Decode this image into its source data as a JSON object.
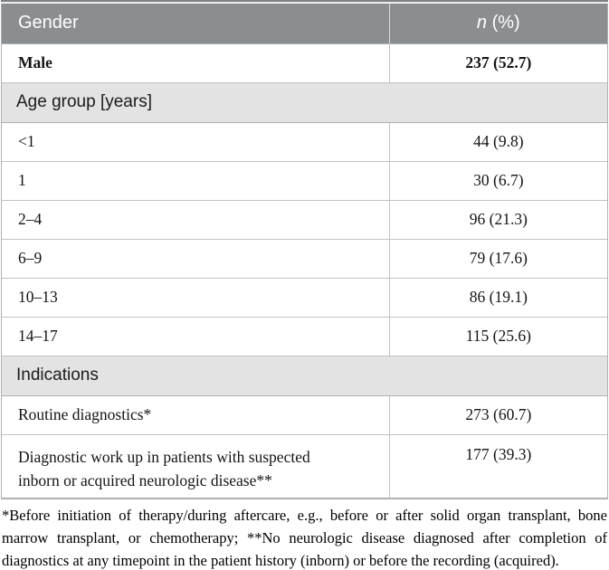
{
  "header": {
    "col1": "Gender",
    "col2_symbol": "n",
    "col2_suffix": " (%)"
  },
  "gender_rows": [
    {
      "label": "Male",
      "value": "237 (52.7)",
      "bold": true
    }
  ],
  "sections": [
    {
      "title": "Age group [years]",
      "rows": [
        {
          "label": "<1",
          "value": "44 (9.8)"
        },
        {
          "label": "1",
          "value": "30 (6.7)"
        },
        {
          "label": "2–4",
          "value": "96 (21.3)"
        },
        {
          "label": "6–9",
          "value": "79 (17.6)"
        },
        {
          "label": "10–13",
          "value": "86 (19.1)"
        },
        {
          "label": "14–17",
          "value": "115 (25.6)"
        }
      ]
    },
    {
      "title": "Indications",
      "rows": [
        {
          "label": "Routine diagnostics*",
          "value": "273 (60.7)"
        },
        {
          "label": "Diagnostic work up in patients with suspected inborn or acquired neurologic disease**",
          "value": "177 (39.3)",
          "tall": true
        }
      ]
    }
  ],
  "footnote": "*Before initiation of therapy/during aftercare, e.g., before or after solid organ transplant, bone marrow transplant, or chemotherapy; **No neurologic disease diagnosed after completion of diagnostics at any timepoint in the patient history (inborn) or before the recording (acquired).",
  "colors": {
    "header_bg": "#8b8e90",
    "top_bar": "#7c8082",
    "section_bg": "#e3e3e3",
    "frame": "#aeb1b3",
    "row_line": "#bfc2c4",
    "header_text": "#ffffff",
    "text": "#141414"
  }
}
